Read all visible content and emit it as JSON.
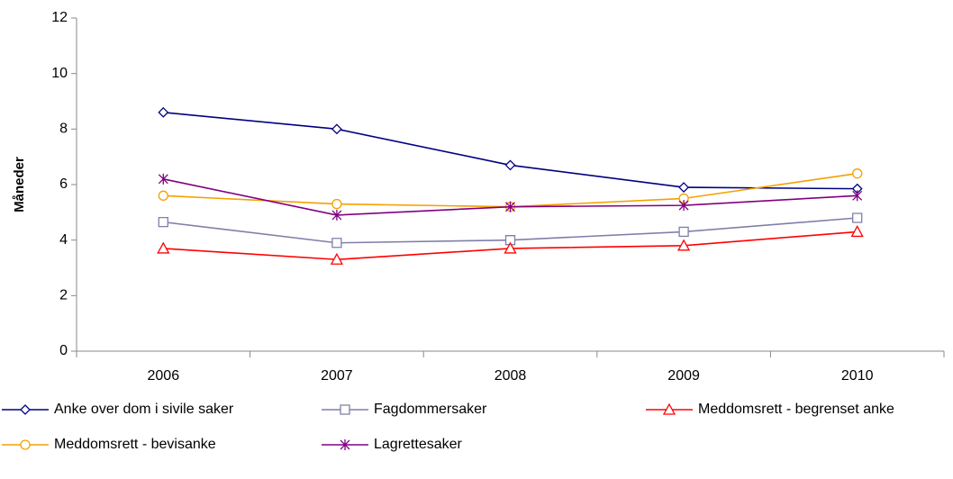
{
  "chart_data": {
    "type": "line",
    "y_label": "Måneder",
    "categories": [
      "2006",
      "2007",
      "2008",
      "2009",
      "2010"
    ],
    "series": [
      {
        "name": "Anke over dom i sivile saker",
        "color": "#000080",
        "marker": "diamond",
        "values": [
          8.6,
          8.0,
          6.7,
          5.9,
          5.85
        ]
      },
      {
        "name": "Fagdommersaker",
        "color": "#7f7fa8",
        "marker": "square",
        "values": [
          4.65,
          3.9,
          4.0,
          4.3,
          4.8
        ]
      },
      {
        "name": "Meddomsrett - begrenset anke",
        "color": "#ff0000",
        "marker": "triangle",
        "values": [
          3.7,
          3.3,
          3.7,
          3.8,
          4.3
        ]
      },
      {
        "name": "Meddomsrett - bevisanke",
        "color": "#f5a000",
        "marker": "circle",
        "values": [
          5.6,
          5.3,
          5.2,
          5.5,
          6.4
        ]
      },
      {
        "name": "Lagrettesaker",
        "color": "#800080",
        "marker": "star",
        "values": [
          6.2,
          4.9,
          5.2,
          5.25,
          5.6
        ]
      }
    ],
    "ylim": [
      0,
      12
    ],
    "yticks": [
      0,
      2,
      4,
      6,
      8,
      10,
      12
    ],
    "grid": false,
    "legend": "bottom"
  }
}
